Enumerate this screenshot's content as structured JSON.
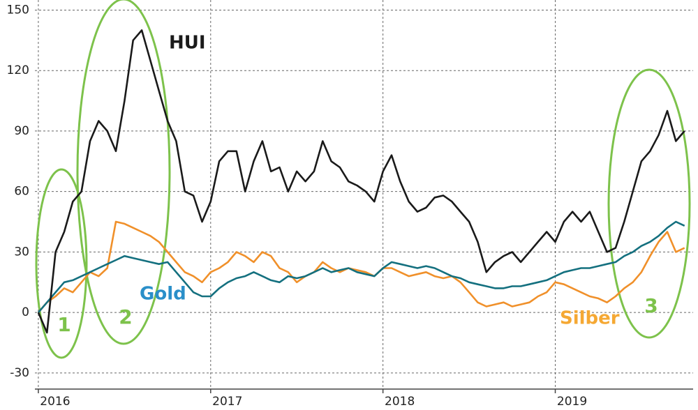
{
  "chart_data": {
    "type": "line",
    "x": [
      2016.0,
      2016.05,
      2016.1,
      2016.15,
      2016.2,
      2016.25,
      2016.3,
      2016.35,
      2016.4,
      2016.45,
      2016.5,
      2016.55,
      2016.6,
      2016.65,
      2016.7,
      2016.75,
      2016.8,
      2016.85,
      2016.9,
      2016.95,
      2017.0,
      2017.05,
      2017.1,
      2017.15,
      2017.2,
      2017.25,
      2017.3,
      2017.35,
      2017.4,
      2017.45,
      2017.5,
      2017.55,
      2017.6,
      2017.65,
      2017.7,
      2017.75,
      2017.8,
      2017.85,
      2017.9,
      2017.95,
      2018.0,
      2018.05,
      2018.1,
      2018.15,
      2018.2,
      2018.25,
      2018.3,
      2018.35,
      2018.4,
      2018.45,
      2018.5,
      2018.55,
      2018.6,
      2018.65,
      2018.7,
      2018.75,
      2018.8,
      2018.85,
      2018.9,
      2018.95,
      2019.0,
      2019.05,
      2019.1,
      2019.15,
      2019.2,
      2019.25,
      2019.3,
      2019.35,
      2019.4,
      2019.45,
      2019.5,
      2019.55,
      2019.6,
      2019.65,
      2019.7,
      2019.75
    ],
    "series": [
      {
        "name": "HUI",
        "color": "#1a1a1a",
        "values": [
          0,
          -10,
          30,
          40,
          55,
          60,
          85,
          95,
          90,
          80,
          105,
          135,
          140,
          125,
          110,
          95,
          85,
          60,
          58,
          45,
          55,
          75,
          80,
          80,
          60,
          75,
          85,
          70,
          72,
          60,
          70,
          65,
          70,
          85,
          75,
          72,
          65,
          63,
          60,
          55,
          70,
          78,
          65,
          55,
          50,
          52,
          57,
          58,
          55,
          50,
          45,
          35,
          20,
          25,
          28,
          30,
          25,
          30,
          35,
          40,
          35,
          45,
          50,
          45,
          50,
          40,
          30,
          32,
          45,
          60,
          75,
          80,
          88,
          100,
          85,
          90
        ]
      },
      {
        "name": "Gold",
        "color": "#14707f",
        "values": [
          0,
          5,
          10,
          15,
          16,
          18,
          20,
          22,
          24,
          26,
          28,
          27,
          26,
          25,
          24,
          25,
          20,
          15,
          10,
          8,
          8,
          12,
          15,
          17,
          18,
          20,
          18,
          16,
          15,
          18,
          17,
          18,
          20,
          22,
          20,
          21,
          22,
          20,
          19,
          18,
          22,
          25,
          24,
          23,
          22,
          23,
          22,
          20,
          18,
          17,
          15,
          14,
          13,
          12,
          12,
          13,
          13,
          14,
          15,
          16,
          18,
          20,
          21,
          22,
          22,
          23,
          24,
          25,
          28,
          30,
          33,
          35,
          38,
          42,
          45,
          43
        ]
      },
      {
        "name": "Silber",
        "color": "#f0902a",
        "values": [
          0,
          5,
          8,
          12,
          10,
          15,
          20,
          18,
          22,
          45,
          44,
          42,
          40,
          38,
          35,
          30,
          25,
          20,
          18,
          15,
          20,
          22,
          25,
          30,
          28,
          25,
          30,
          28,
          22,
          20,
          15,
          18,
          20,
          25,
          22,
          20,
          22,
          21,
          20,
          18,
          22,
          22,
          20,
          18,
          19,
          20,
          18,
          17,
          18,
          15,
          10,
          5,
          3,
          4,
          5,
          3,
          4,
          5,
          8,
          10,
          15,
          14,
          12,
          10,
          8,
          7,
          5,
          8,
          12,
          15,
          20,
          28,
          35,
          40,
          30,
          32
        ]
      }
    ],
    "annotations": [
      "1",
      "2",
      "3"
    ],
    "xlim": [
      2015.98,
      2019.8
    ],
    "xticks": [
      2016,
      2017,
      2018,
      2019
    ],
    "ylim": [
      -38,
      155
    ],
    "yticks": [
      -30,
      0,
      30,
      60,
      90,
      120,
      150
    ],
    "grid": true
  }
}
